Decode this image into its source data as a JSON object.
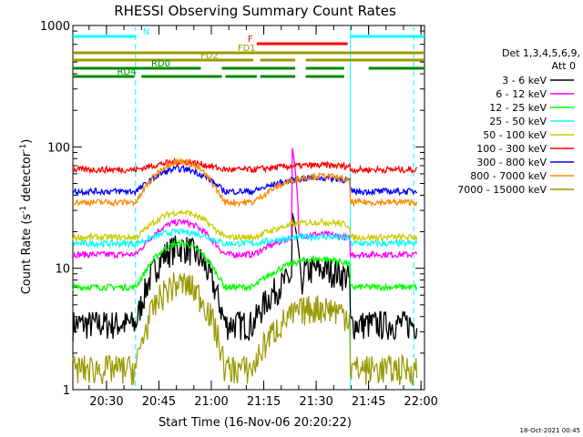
{
  "chart_data": {
    "type": "line",
    "title": "RHESSI Observing Summary Count Rates",
    "xlabel": "Start Time (16-Nov-06 20:20:22)",
    "ylabel_main": "Count Rate (s",
    "ylabel_sup1": "-1",
    "ylabel_mid": " detector",
    "ylabel_sup2": "-1",
    "ylabel_end": ")",
    "y_scale": "log",
    "ylim": [
      1,
      1000
    ],
    "xlim_minutes": [
      20.33,
      21.97
    ],
    "x_ticks": [
      {
        "label": "20:30",
        "t": 20.5
      },
      {
        "label": "20:45",
        "t": 20.75
      },
      {
        "label": "21:00",
        "t": 21.0
      },
      {
        "label": "21:15",
        "t": 21.25
      },
      {
        "label": "21:30",
        "t": 21.5
      },
      {
        "label": "21:45",
        "t": 21.75
      },
      {
        "label": "22:00",
        "t": 22.0
      }
    ],
    "y_ticks": [
      {
        "label": "1",
        "v": 1
      },
      {
        "label": "10",
        "v": 10
      },
      {
        "label": "100",
        "v": 100
      },
      {
        "label": "1000",
        "v": 1000
      }
    ],
    "legend_header": [
      "Det 1,3,4,5,6,9,",
      "Att 0"
    ],
    "legend_position": "right",
    "series": [
      {
        "name": "3 - 6 keV",
        "color": "#000000",
        "base": 3.5,
        "peak": 15,
        "night": 3.5
      },
      {
        "name": "6 - 12 keV",
        "color": "#ff00ff",
        "base": 13,
        "peak": 24,
        "night": 13
      },
      {
        "name": "12 - 25 keV",
        "color": "#00ff00",
        "base": 7,
        "peak": 16,
        "night": 7
      },
      {
        "name": "25 - 50 keV",
        "color": "#00ffff",
        "base": 16,
        "peak": 20,
        "night": 16
      },
      {
        "name": "50 - 100 keV",
        "color": "#cccc00",
        "base": 18,
        "peak": 29,
        "night": 18
      },
      {
        "name": "100 - 300 keV",
        "color": "#ff0000",
        "base": 65,
        "peak": 75,
        "night": 65
      },
      {
        "name": "300 - 800 keV",
        "color": "#0000ff",
        "base": 43,
        "peak": 66,
        "night": 43
      },
      {
        "name": "800 - 7000 keV",
        "color": "#ff8800",
        "base": 35,
        "peak": 76,
        "night": 35
      },
      {
        "name": "7000 - 15000 keV",
        "color": "#999900",
        "base": 1.5,
        "peak": 7.5,
        "night": 1.5
      }
    ],
    "flag_labels": [
      {
        "text": "N",
        "color": "#00ffff"
      },
      {
        "text": "F",
        "color": "#ff0000"
      },
      {
        "text": "FD1",
        "color": "#999900"
      },
      {
        "text": "FD2",
        "color": "#999900"
      },
      {
        "text": "RD0",
        "color": "#008800"
      },
      {
        "text": "RD4",
        "color": "#008800"
      }
    ],
    "grid": false,
    "footer_timestamp": "18-Oct-2021 00:45"
  }
}
